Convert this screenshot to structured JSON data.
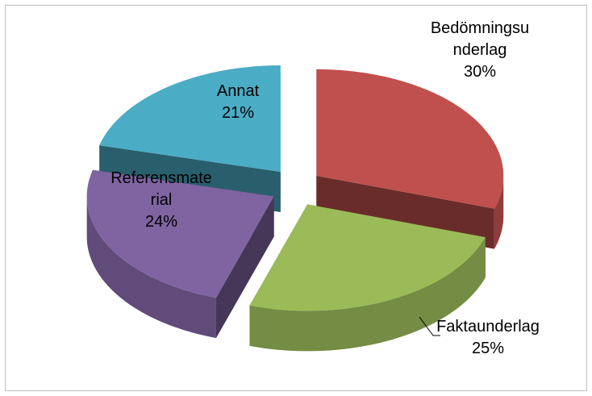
{
  "chart_data": {
    "type": "pie",
    "categories": [
      "Bedömningsunderlag",
      "Faktaunderlag",
      "Referensmaterial",
      "Annat"
    ],
    "values": [
      30,
      25,
      24,
      21
    ],
    "value_labels": [
      "30%",
      "25%",
      "24%",
      "21%"
    ],
    "colors": [
      "#c0504d",
      "#9bbb59",
      "#8064a2",
      "#4bacc6"
    ]
  }
}
